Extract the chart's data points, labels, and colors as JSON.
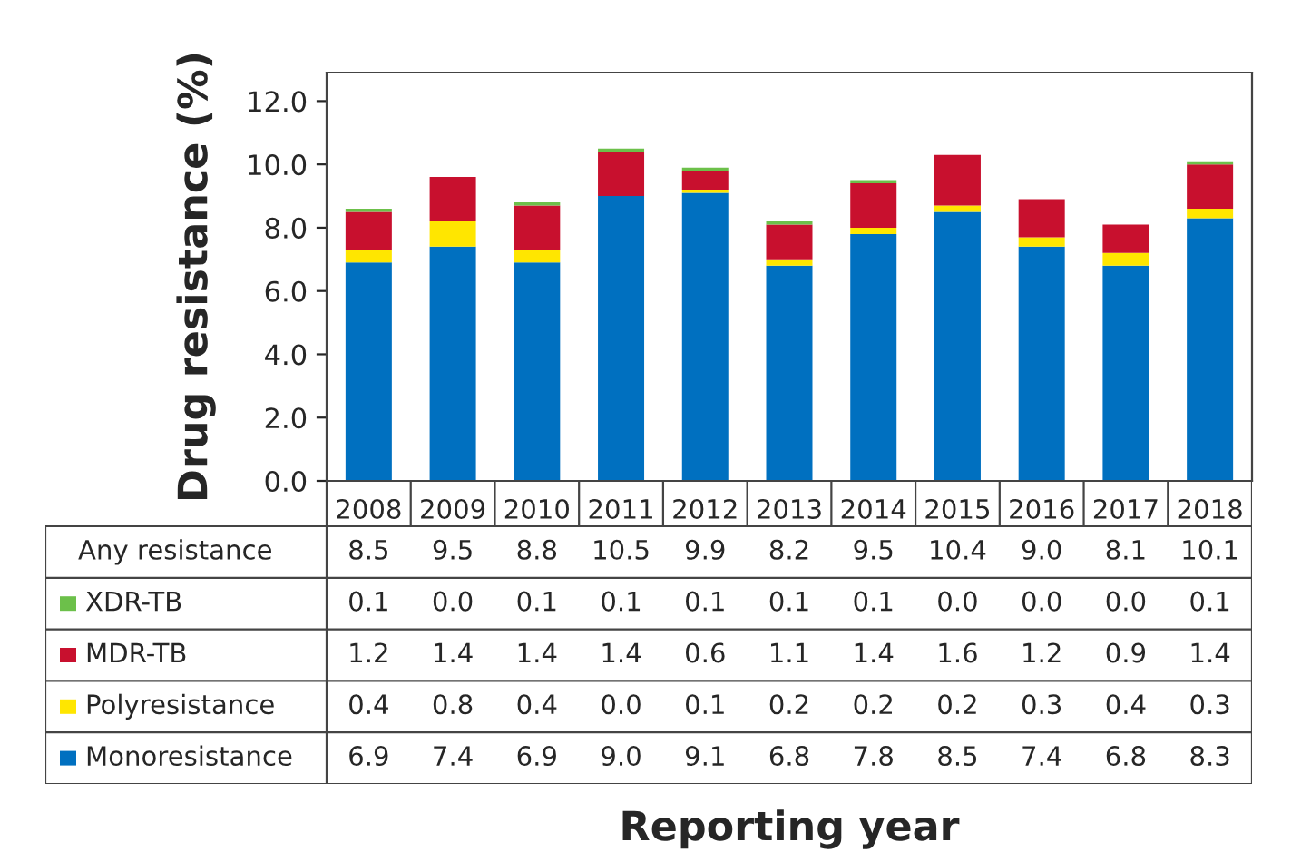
{
  "chart_data": {
    "type": "bar",
    "stacked": true,
    "ylabel": "Drug resistance (%)",
    "categories": [
      "2008",
      "2009",
      "2010",
      "2011",
      "2012",
      "2013",
      "2014",
      "2015",
      "2016",
      "2017",
      "2018"
    ],
    "series": [
      {
        "name": "Monoresistance",
        "color": "#0070c0",
        "values": [
          6.9,
          7.4,
          6.9,
          9.0,
          9.1,
          6.8,
          7.8,
          8.5,
          7.4,
          6.8,
          8.3
        ],
        "value_labels": [
          "6.9",
          "7.4",
          "6.9",
          "9.0",
          "9.1",
          "6.8",
          "7.8",
          "8.5",
          "7.4",
          "6.8",
          "8.3"
        ]
      },
      {
        "name": "Polyresistance",
        "color": "#ffe600",
        "values": [
          0.4,
          0.8,
          0.4,
          0.0,
          0.1,
          0.2,
          0.2,
          0.2,
          0.3,
          0.4,
          0.3
        ],
        "value_labels": [
          "0.4",
          "0.8",
          "0.4",
          "0.0",
          "0.1",
          "0.2",
          "0.2",
          "0.2",
          "0.3",
          "0.4",
          "0.3"
        ]
      },
      {
        "name": "MDR-TB",
        "color": "#c8102e",
        "values": [
          1.2,
          1.4,
          1.4,
          1.4,
          0.6,
          1.1,
          1.4,
          1.6,
          1.2,
          0.9,
          1.4
        ],
        "value_labels": [
          "1.2",
          "1.4",
          "1.4",
          "1.4",
          "0.6",
          "1.1",
          "1.4",
          "1.6",
          "1.2",
          "0.9",
          "1.4"
        ]
      },
      {
        "name": "XDR-TB",
        "color": "#6cc04a",
        "values": [
          0.1,
          0.0,
          0.1,
          0.1,
          0.1,
          0.1,
          0.1,
          0.0,
          0.0,
          0.0,
          0.1
        ],
        "value_labels": [
          "0.1",
          "0.0",
          "0.1",
          "0.1",
          "0.1",
          "0.1",
          "0.1",
          "0.0",
          "0.0",
          "0.0",
          "0.1"
        ]
      }
    ],
    "annotations": [
      "Any resistance",
      "Reporting year"
    ],
    "totals": [
      "8.5",
      "9.5",
      "8.8",
      "10.5",
      "9.9",
      "8.2",
      "9.5",
      "10.4",
      "9.0",
      "8.1",
      "10.1"
    ],
    "ylim": [
      0,
      12.9
    ],
    "yticks": [
      {
        "value": 0,
        "label": "0.0"
      },
      {
        "value": 2,
        "label": "2.0"
      },
      {
        "value": 4,
        "label": "4.0"
      },
      {
        "value": 6,
        "label": "6.0"
      },
      {
        "value": 8,
        "label": "8.0"
      },
      {
        "value": 10,
        "label": "10.0"
      },
      {
        "value": 12,
        "label": "12.0"
      }
    ],
    "legend": "bottom left",
    "grid": false
  }
}
